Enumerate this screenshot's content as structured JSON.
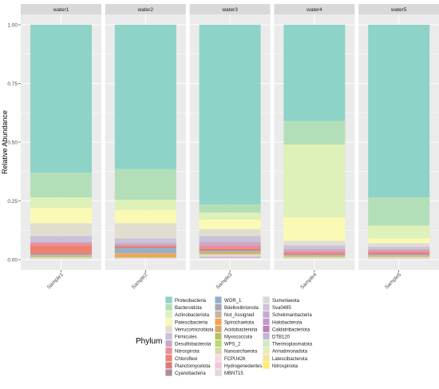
{
  "chart_data": {
    "type": "bar",
    "stacked": true,
    "title": "",
    "xlabel": "",
    "ylabel": "Relative Abundance",
    "ylim": [
      0,
      1
    ],
    "y_ticks": [
      "0.00",
      "0.25",
      "0.50",
      "0.75",
      "1.00"
    ],
    "y_tick_values": [
      0,
      0.25,
      0.5,
      0.75,
      1.0
    ],
    "grid": true,
    "facets": [
      {
        "strip": "water1",
        "x_label": "Sample1"
      },
      {
        "strip": "water2",
        "x_label": "Sample2"
      },
      {
        "strip": "water3",
        "x_label": "Sample3"
      },
      {
        "strip": "water4",
        "x_label": "Sample4"
      },
      {
        "strip": "water5",
        "x_label": "Sample5"
      }
    ],
    "legend": {
      "title": "Phylum",
      "placement": "bottom",
      "columns": 3
    },
    "series": [
      {
        "name": "Proteobacteria",
        "color": "#8DD3C7",
        "values": [
          0.63,
          0.615,
          0.765,
          0.41,
          0.735
        ]
      },
      {
        "name": "Bacteroidota",
        "color": "#B3DFB8",
        "values": [
          0.105,
          0.13,
          0.035,
          0.1,
          0.12
        ]
      },
      {
        "name": "Actinobacteriota",
        "color": "#DDF1B8",
        "values": [
          0.045,
          0.045,
          0.03,
          0.31,
          0.055
        ]
      },
      {
        "name": "Patescibacteria",
        "color": "#FAFAB5",
        "values": [
          0.065,
          0.055,
          0.04,
          0.1,
          0.02
        ]
      },
      {
        "name": "Verrucomicrobiota",
        "color": "#E1DED0",
        "values": [
          0.055,
          0.065,
          0.03,
          0.02,
          0.015
        ]
      },
      {
        "name": "Firmicutes",
        "color": "#C9C3DA",
        "values": [
          0.025,
          0.02,
          0.025,
          0.015,
          0.01
        ]
      },
      {
        "name": "Desulfobacterota",
        "color": "#CBA8C8",
        "values": [
          0.005,
          0.01,
          0.015,
          0.01,
          0.008
        ]
      },
      {
        "name": "Nitrospirota",
        "color": "#E78F9B",
        "values": [
          0.01,
          0.0,
          0.01,
          0.005,
          0.005
        ]
      },
      {
        "name": "Chloroflexi",
        "color": "#F08070",
        "values": [
          0.03,
          0.005,
          0.005,
          0.005,
          0.005
        ]
      },
      {
        "name": "Planctomycetota",
        "color": "#DB7B78",
        "values": [
          0.005,
          0.005,
          0.005,
          0.003,
          0.004
        ]
      },
      {
        "name": "Cyanobacteria",
        "color": "#AA8AA0",
        "values": [
          0.003,
          0.003,
          0.003,
          0.002,
          0.003
        ]
      },
      {
        "name": "WOR_1",
        "color": "#8FAFCB",
        "values": [
          0.0,
          0.015,
          0.0,
          0.0,
          0.0
        ]
      },
      {
        "name": "Bdellovibrionota",
        "color": "#A8A5B0",
        "values": [
          0.002,
          0.005,
          0.003,
          0.002,
          0.002
        ]
      },
      {
        "name": "Not_Assigned",
        "color": "#C3B7A2",
        "values": [
          0.002,
          0.003,
          0.003,
          0.002,
          0.002
        ]
      },
      {
        "name": "Spirochaetota",
        "color": "#F4A34F",
        "values": [
          0.0,
          0.012,
          0.0,
          0.0,
          0.0
        ]
      },
      {
        "name": "Acidobacteriota",
        "color": "#D5AA63",
        "values": [
          0.003,
          0.002,
          0.005,
          0.003,
          0.003
        ]
      },
      {
        "name": "Myxococcota",
        "color": "#B8BE67",
        "values": [
          0.003,
          0.002,
          0.003,
          0.002,
          0.002
        ]
      },
      {
        "name": "WPS_2",
        "color": "#B3DE69",
        "values": [
          0.002,
          0.0,
          0.002,
          0.002,
          0.001
        ]
      },
      {
        "name": "Nanoarchaeota",
        "color": "#D9D7A6",
        "values": [
          0.001,
          0.001,
          0.002,
          0.001,
          0.001
        ]
      },
      {
        "name": "FCPU426",
        "color": "#F6D9E4",
        "values": [
          0.001,
          0.001,
          0.002,
          0.001,
          0.001
        ]
      },
      {
        "name": "Hydrogenedentes",
        "color": "#F0C8D8",
        "values": [
          0.001,
          0.001,
          0.002,
          0.001,
          0.001
        ]
      },
      {
        "name": "MBNT15",
        "color": "#E3D6E0",
        "values": [
          0.001,
          0.001,
          0.001,
          0.001,
          0.001
        ]
      },
      {
        "name": "Sumerlaeota",
        "color": "#D9D9D9",
        "values": [
          0.001,
          0.001,
          0.001,
          0.001,
          0.001
        ]
      },
      {
        "name": "Sva0485",
        "color": "#CFC3D9",
        "values": [
          0.001,
          0.001,
          0.002,
          0.001,
          0.001
        ]
      },
      {
        "name": "Schekmanbacteria",
        "color": "#C8A9D2",
        "values": [
          0.001,
          0.0,
          0.001,
          0.0,
          0.001
        ]
      },
      {
        "name": "Halobacterota",
        "color": "#C197CB",
        "values": [
          0.0,
          0.0,
          0.001,
          0.0,
          0.0
        ]
      },
      {
        "name": "Caldatribacteriota",
        "color": "#BC80BD",
        "values": [
          0.0,
          0.0,
          0.001,
          0.0,
          0.0
        ]
      },
      {
        "name": "DTB120",
        "color": "#C6B5D2",
        "values": [
          0.0,
          0.0,
          0.001,
          0.0,
          0.0
        ]
      },
      {
        "name": "Thermoplasmatota",
        "color": "#CCEBC5",
        "values": [
          0.001,
          0.0,
          0.001,
          0.001,
          0.001
        ]
      },
      {
        "name": "Armatimonadota",
        "color": "#E4EDB6",
        "values": [
          0.0,
          0.0,
          0.001,
          0.0,
          0.0
        ]
      },
      {
        "name": "Latescibacterota",
        "color": "#F5E793",
        "values": [
          0.0,
          0.0,
          0.0,
          0.0,
          0.0
        ]
      },
      {
        "name": "Nitrospinota",
        "color": "#FFED6F",
        "values": [
          0.0,
          0.0,
          0.0,
          0.0,
          0.0
        ]
      }
    ]
  }
}
